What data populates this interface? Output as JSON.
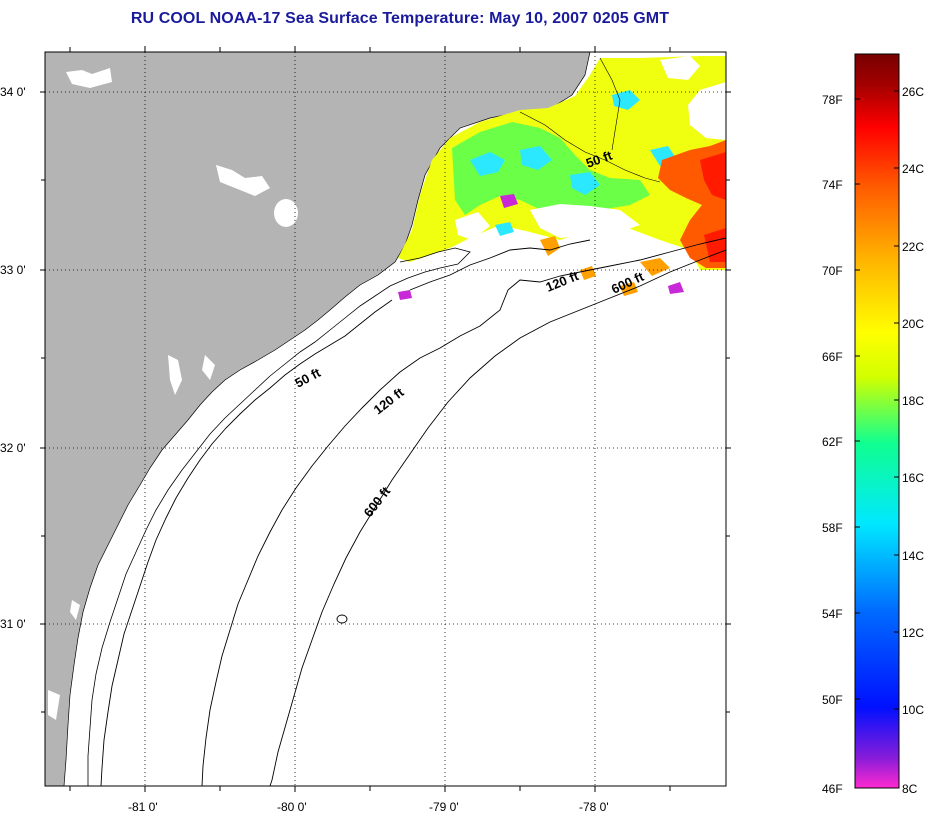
{
  "title": "RU COOL  NOAA-17  Sea Surface Temperature:  May 10, 2007 0205 GMT",
  "map": {
    "lat_labels": [
      "34 0'",
      "33 0'",
      "32 0'",
      "31 0'"
    ],
    "lon_labels": [
      "-81 0'",
      "-80 0'",
      "-79 0'",
      "-78 0'"
    ],
    "contour_labels": {
      "fifty_north": "50 ft",
      "fifty_south": "50 ft",
      "onetwenty_north": "120 ft",
      "onetwenty_south": "120 ft",
      "sixhundred_north": "600 ft",
      "sixhundred_south": "600 ft"
    },
    "colors": {
      "land": "#b4b4b4",
      "ocean_no_data": "#ffffff",
      "cloud_mask": "#ffffff"
    }
  },
  "colorbar": {
    "f_labels": [
      "78F",
      "74F",
      "70F",
      "66F",
      "62F",
      "58F",
      "54F",
      "50F",
      "46F"
    ],
    "c_labels": [
      "26C",
      "24C",
      "22C",
      "20C",
      "18C",
      "16C",
      "14C",
      "12C",
      "10C",
      "8C"
    ],
    "gradient_colors": [
      "#ff2ad0",
      "#8a1cd8",
      "#0010ff",
      "#006aff",
      "#00e8ff",
      "#10ff90",
      "#d2ff00",
      "#ffff00",
      "#ffb400",
      "#ff5a00",
      "#ff0000",
      "#a00000",
      "#780000"
    ]
  }
}
